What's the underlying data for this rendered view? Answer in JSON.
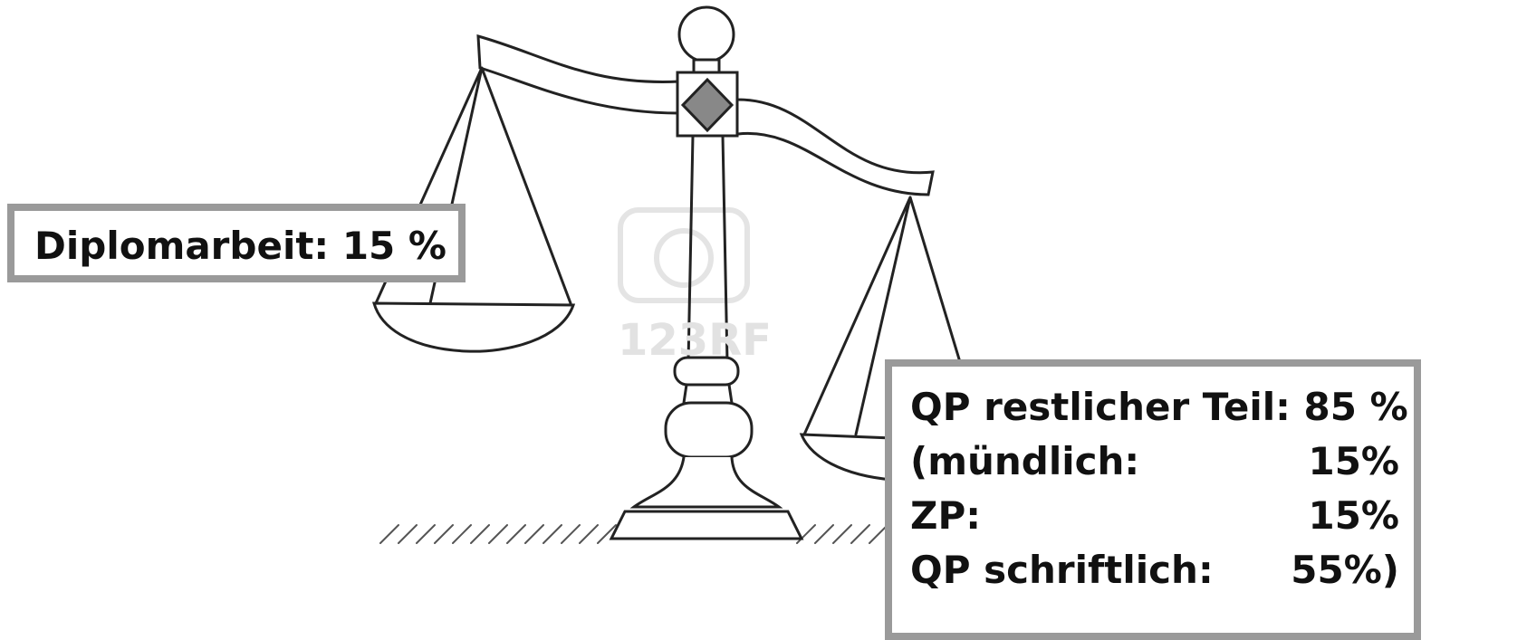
{
  "watermark": "123RF",
  "left_box": {
    "text": "Diplomarbeit: 15 %"
  },
  "right_box": {
    "heading": "QP restlicher Teil: 85 %",
    "items": [
      {
        "label": "(mündlich:",
        "value": "15%"
      },
      {
        "label": "ZP:",
        "value": "15%"
      },
      {
        "label": "QP schriftlich:",
        "value": "55%)"
      }
    ]
  }
}
